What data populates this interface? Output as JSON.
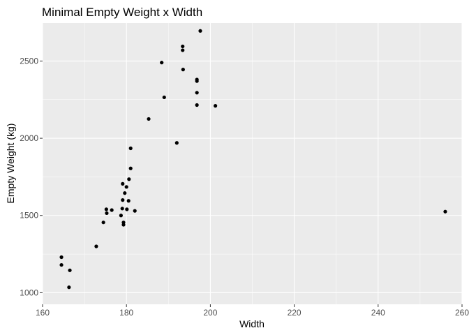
{
  "chart_data": {
    "type": "scatter",
    "title": "Minimal Empty Weight x Width",
    "xlabel": "Width",
    "ylabel": "Empty Weight (kg)",
    "xlim": [
      160,
      260
    ],
    "ylim": [
      1000,
      2700
    ],
    "x_ticks": [
      "160",
      "180",
      "200",
      "220",
      "240",
      "260"
    ],
    "y_ticks": [
      "1000",
      "1500",
      "2000",
      "2500"
    ],
    "grid": true,
    "legend": "none",
    "colors": {
      "panel": "#ebebeb",
      "grid": "#ffffff",
      "point": "#000000"
    },
    "points": [
      {
        "x": 164.5,
        "y": 1230
      },
      {
        "x": 164.5,
        "y": 1180
      },
      {
        "x": 166.5,
        "y": 1145
      },
      {
        "x": 166.3,
        "y": 1035
      },
      {
        "x": 172.8,
        "y": 1300
      },
      {
        "x": 174.5,
        "y": 1455
      },
      {
        "x": 175.2,
        "y": 1540
      },
      {
        "x": 175.3,
        "y": 1515
      },
      {
        "x": 176.5,
        "y": 1535
      },
      {
        "x": 178.7,
        "y": 1500
      },
      {
        "x": 179.0,
        "y": 1545
      },
      {
        "x": 179.1,
        "y": 1600
      },
      {
        "x": 179.1,
        "y": 1705
      },
      {
        "x": 179.3,
        "y": 1455
      },
      {
        "x": 179.3,
        "y": 1440
      },
      {
        "x": 179.6,
        "y": 1645
      },
      {
        "x": 180.0,
        "y": 1685
      },
      {
        "x": 180.1,
        "y": 1540
      },
      {
        "x": 180.5,
        "y": 1595
      },
      {
        "x": 180.6,
        "y": 1735
      },
      {
        "x": 181.0,
        "y": 1805
      },
      {
        "x": 181.0,
        "y": 1935
      },
      {
        "x": 182.0,
        "y": 1530
      },
      {
        "x": 185.3,
        "y": 2125
      },
      {
        "x": 188.4,
        "y": 2490
      },
      {
        "x": 189.0,
        "y": 2265
      },
      {
        "x": 192.0,
        "y": 1970
      },
      {
        "x": 193.4,
        "y": 2595
      },
      {
        "x": 193.4,
        "y": 2570
      },
      {
        "x": 193.5,
        "y": 2445
      },
      {
        "x": 196.8,
        "y": 2380
      },
      {
        "x": 196.8,
        "y": 2370
      },
      {
        "x": 196.8,
        "y": 2295
      },
      {
        "x": 196.8,
        "y": 2215
      },
      {
        "x": 197.6,
        "y": 2695
      },
      {
        "x": 201.2,
        "y": 2210
      },
      {
        "x": 256.0,
        "y": 1525
      }
    ]
  }
}
